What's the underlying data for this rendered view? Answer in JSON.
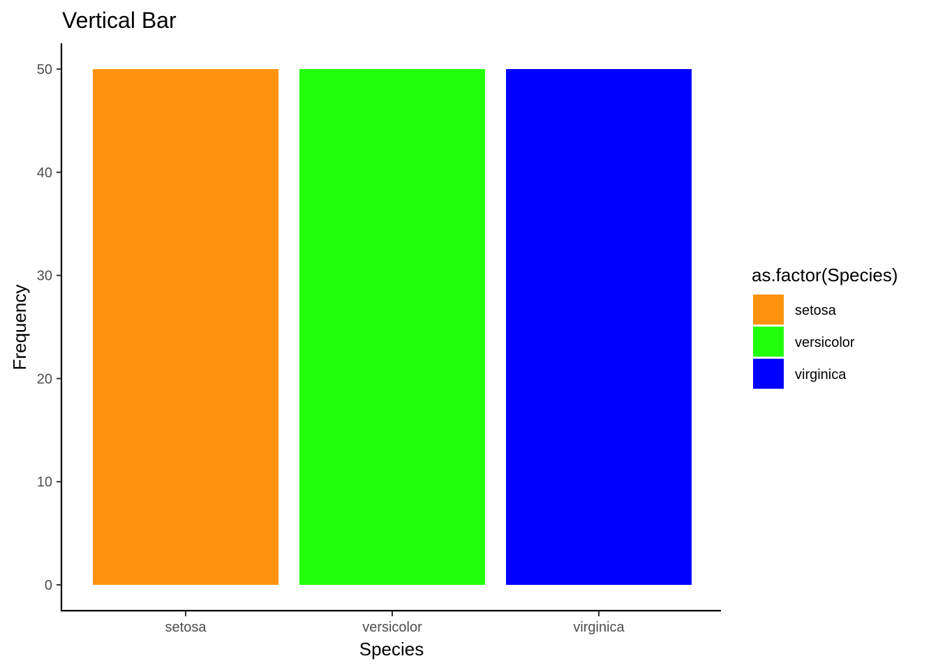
{
  "chart_data": {
    "type": "bar",
    "title": "Vertical Bar",
    "xlabel": "Species",
    "ylabel": "Frequency",
    "categories": [
      "setosa",
      "versicolor",
      "virginica"
    ],
    "values": [
      50,
      50,
      50
    ],
    "colors": [
      "#FF930F",
      "#22FF0B",
      "#0000FF"
    ],
    "ylim": [
      0,
      52.5
    ],
    "yticks": [
      0,
      10,
      20,
      30,
      40,
      50
    ],
    "grid": false,
    "legend": {
      "title": "as.factor(Species)",
      "position": "right",
      "entries": [
        "setosa",
        "versicolor",
        "virginica"
      ]
    }
  }
}
